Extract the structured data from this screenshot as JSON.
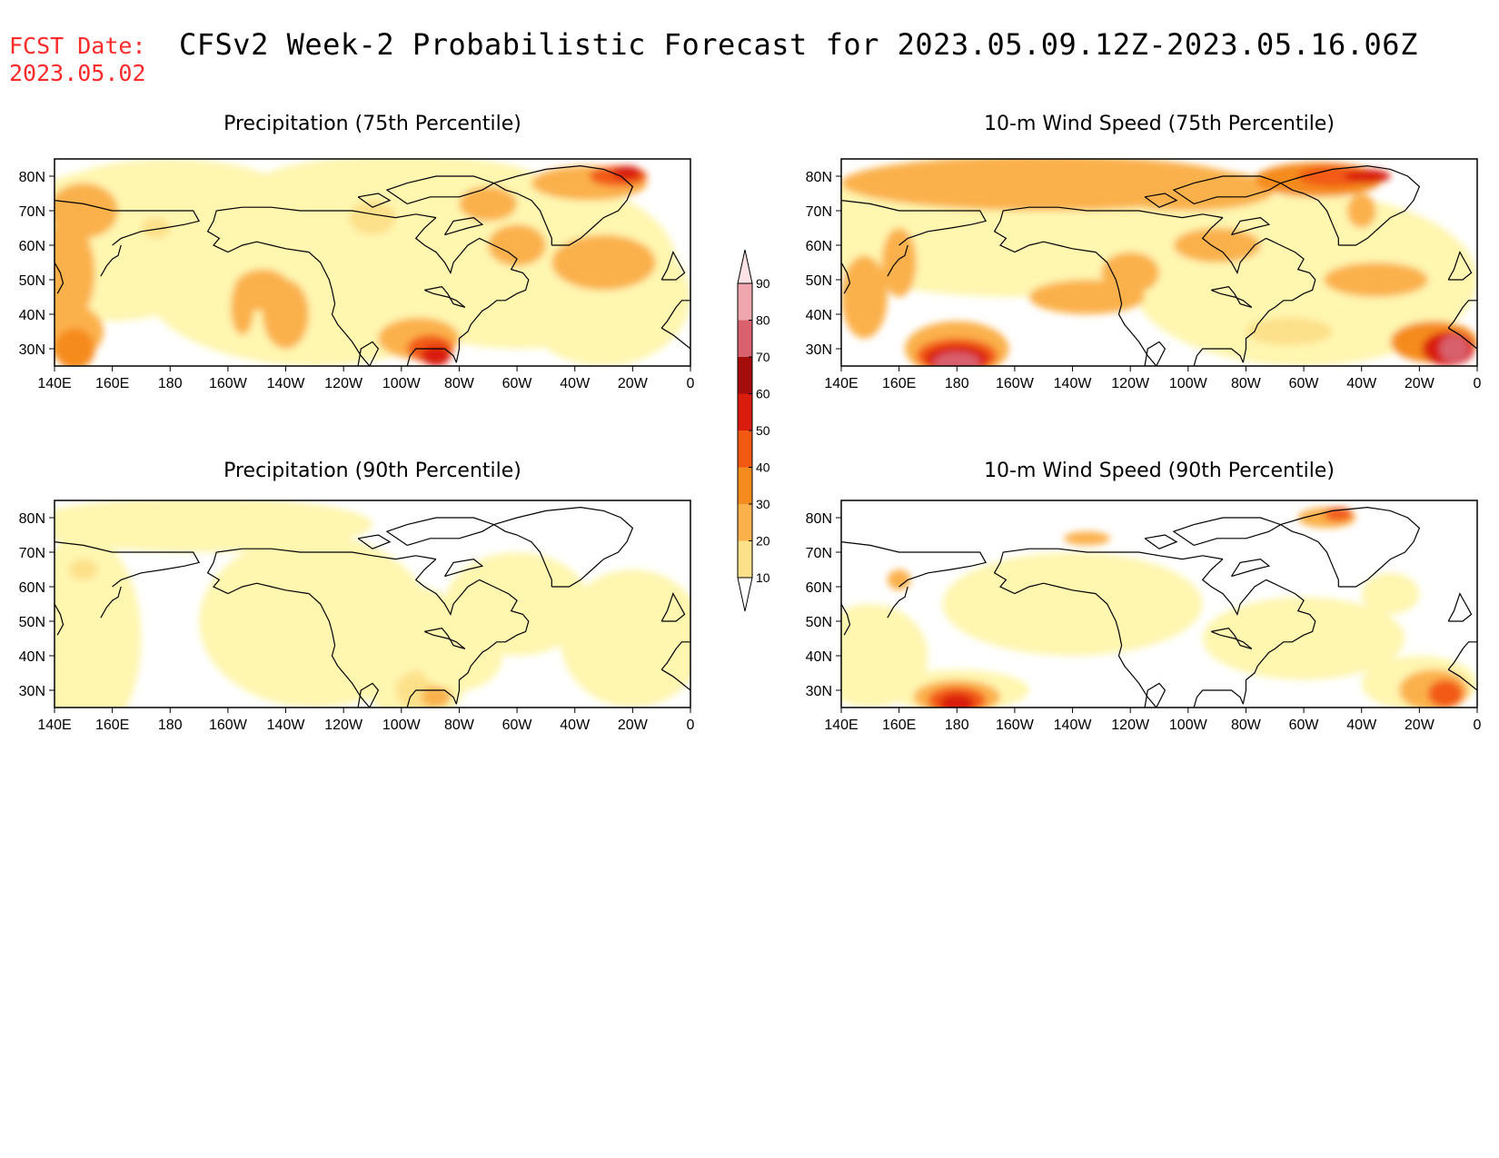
{
  "fcst": {
    "label": "FCST Date:",
    "date": "2023.05.02"
  },
  "title": "CFSv2 Week-2 Probabilistic Forecast for 2023.05.09.12Z-2023.05.16.06Z",
  "colors": {
    "fcst_text": "#ff2a2a",
    "levels": [
      "#ffffff",
      "#fff6b0",
      "#fde08a",
      "#fbb14b",
      "#f58b1e",
      "#f25a14",
      "#d91c0e",
      "#a50c0c",
      "#d8616d",
      "#f0a6ae",
      "#fde3e6"
    ]
  },
  "colorbar": {
    "labels": [
      "10",
      "20",
      "30",
      "40",
      "50",
      "60",
      "70",
      "80",
      "90"
    ]
  },
  "axes": {
    "lon_labels": [
      "140E",
      "160E",
      "180",
      "160W",
      "140W",
      "120W",
      "100W",
      "80W",
      "60W",
      "40W",
      "20W",
      "0"
    ],
    "lat_labels": [
      "80N",
      "70N",
      "60N",
      "50N",
      "40N",
      "30N"
    ]
  },
  "panels": [
    {
      "title": "Precipitation (75th Percentile)",
      "variable": "precipitation",
      "percentile": 75,
      "extent": {
        "lon": [
          140,
          360
        ],
        "lat": [
          25,
          85
        ]
      },
      "max_category": 70
    },
    {
      "title": "10-m Wind Speed (75th Percentile)",
      "variable": "wind_speed_10m",
      "percentile": 75,
      "extent": {
        "lon": [
          140,
          360
        ],
        "lat": [
          25,
          85
        ]
      },
      "max_category": 80
    },
    {
      "title": "Precipitation (90th Percentile)",
      "variable": "precipitation",
      "percentile": 90,
      "extent": {
        "lon": [
          140,
          360
        ],
        "lat": [
          25,
          85
        ]
      },
      "max_category": 40
    },
    {
      "title": "10-m Wind Speed (90th Percentile)",
      "variable": "wind_speed_10m",
      "percentile": 90,
      "extent": {
        "lon": [
          140,
          360
        ],
        "lat": [
          25,
          85
        ]
      },
      "max_category": 70
    }
  ]
}
